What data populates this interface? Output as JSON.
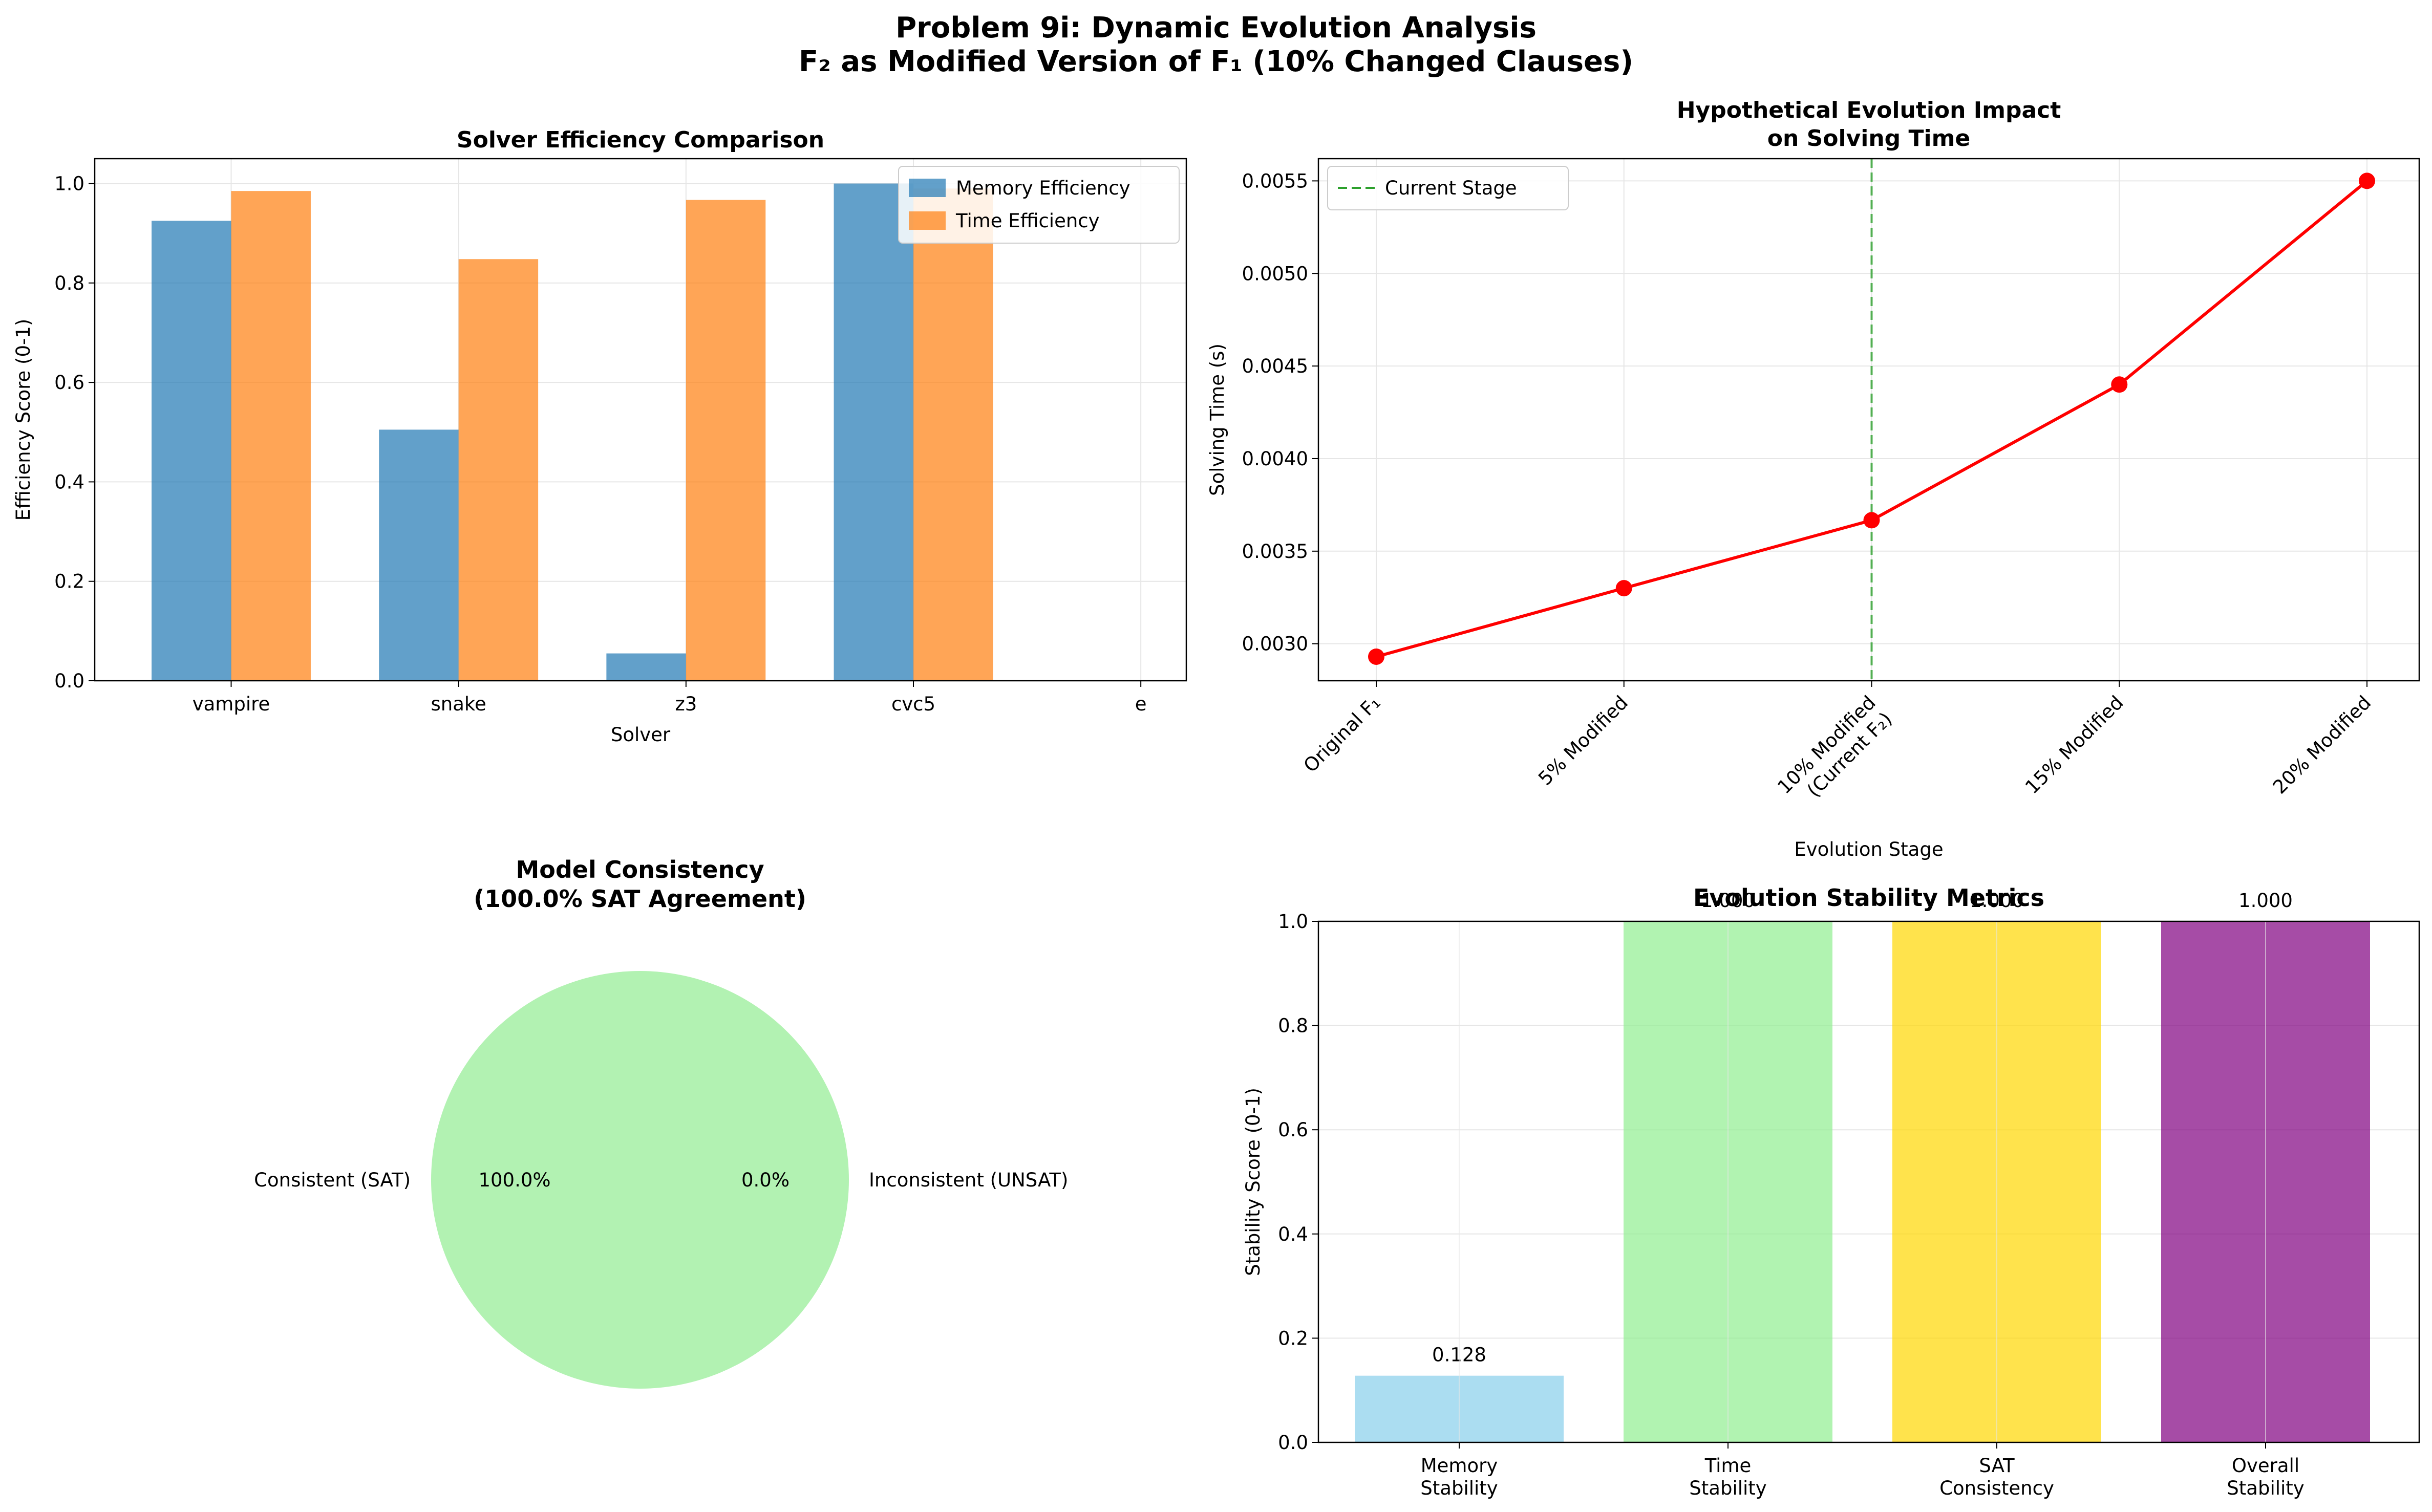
{
  "suptitle_line1": "Problem 9i: Dynamic Evolution Analysis",
  "suptitle_line2": "F₂ as Modified Version of F₁ (10% Changed Clauses)",
  "chart_data": [
    {
      "type": "bar",
      "title": "Solver Efficiency Comparison",
      "xlabel": "Solver",
      "ylabel": "Efficiency Score (0-1)",
      "categories": [
        "vampire",
        "snake",
        "z3",
        "cvc5",
        "e"
      ],
      "series": [
        {
          "name": "Memory Efficiency",
          "color": "#1f77b4",
          "values": [
            0.925,
            0.505,
            0.055,
            1.0,
            0
          ]
        },
        {
          "name": "Time Efficiency",
          "color": "#ff7f0e",
          "values": [
            0.985,
            0.848,
            0.967,
            0.99,
            0
          ]
        }
      ],
      "ylim": [
        0,
        1.05
      ],
      "yticks": [
        "0.0",
        "0.2",
        "0.4",
        "0.6",
        "0.8",
        "1.0"
      ],
      "grid": true,
      "legend": "upper right"
    },
    {
      "type": "line",
      "title_line1": "Hypothetical Evolution Impact",
      "title_line2": "on Solving Time",
      "xlabel": "Evolution Stage",
      "ylabel": "Solving Time (s)",
      "categories": [
        "Original F₁",
        "5% Modified",
        "10% Modified",
        "15% Modified",
        "20% Modified"
      ],
      "category_line2": [
        "",
        "",
        "(Current F₂)",
        "",
        ""
      ],
      "series": [
        {
          "name": "Solving Time",
          "color": "#ff0000",
          "values": [
            0.00293,
            0.0033,
            0.003667,
            0.0044,
            0.0055
          ]
        }
      ],
      "ylim": [
        0.0028,
        0.00562
      ],
      "yticks": [
        "0.0030",
        "0.0035",
        "0.0040",
        "0.0045",
        "0.0050",
        "0.0055"
      ],
      "reference_line": {
        "label": "Current Stage",
        "category_index": 2,
        "color": "#2ca02c"
      },
      "grid": true,
      "legend": "upper left"
    },
    {
      "type": "pie",
      "title_line1": "Model Consistency",
      "title_line2": "(100.0% SAT Agreement)",
      "slices": [
        {
          "label": "Consistent (SAT)",
          "value": 100.0,
          "pct": "100.0%",
          "color": "#b2f2b2"
        },
        {
          "label": "Inconsistent (UNSAT)",
          "value": 0.0,
          "pct": "0.0%",
          "color": "#ff6b6b"
        }
      ]
    },
    {
      "type": "bar",
      "title": "Evolution Stability Metrics",
      "ylabel": "Stability Score (0-1)",
      "categories_line1": [
        "Memory",
        "Time",
        "SAT",
        "Overall"
      ],
      "categories_line2": [
        "Stability",
        "Stability",
        "Consistency",
        "Stability"
      ],
      "values": [
        0.128,
        1.0,
        1.0,
        1.0
      ],
      "value_labels": [
        "0.128",
        "1.000",
        "1.000",
        "1.000"
      ],
      "colors": [
        "#87ceeb",
        "#90ee90",
        "#ffd700",
        "#800080"
      ],
      "ylim": [
        0,
        1.0
      ],
      "yticks": [
        "0.0",
        "0.2",
        "0.4",
        "0.6",
        "0.8",
        "1.0"
      ],
      "grid": true
    }
  ]
}
